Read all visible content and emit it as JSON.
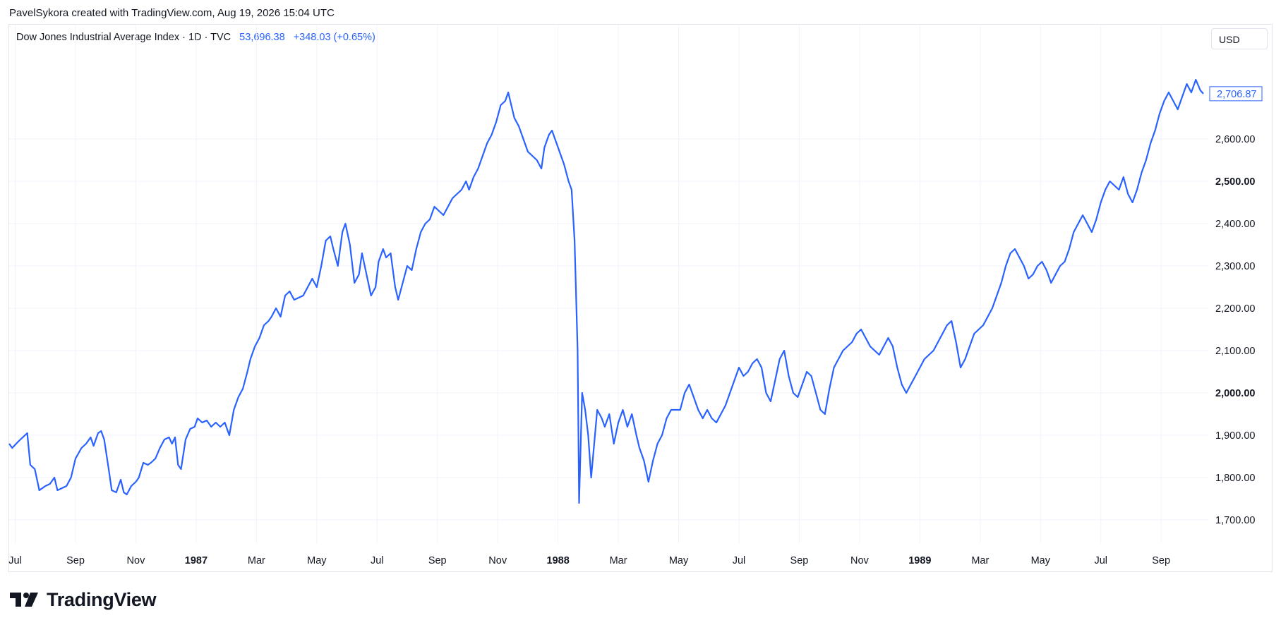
{
  "credit": "PavelSykora created with TradingView.com, Aug 19, 2026 15:04 UTC",
  "legend": {
    "symbol": "Dow Jones Industrial Average Index · 1D · TVC",
    "last": "53,696.38",
    "change": "+348.03 (+0.65%)"
  },
  "currency": "USD",
  "brand": "TradingView",
  "colors": {
    "line": "#2962ff",
    "grid": "#f0f3fa",
    "text": "#131722",
    "border": "#e0e3eb"
  },
  "chart_data": {
    "type": "line",
    "y_ticks": [
      {
        "value": 2600,
        "label": "2,600.00"
      },
      {
        "value": 2500,
        "label": "2,500.00",
        "bold": true
      },
      {
        "value": 2400,
        "label": "2,400.00"
      },
      {
        "value": 2300,
        "label": "2,300.00"
      },
      {
        "value": 2200,
        "label": "2,200.00"
      },
      {
        "value": 2100,
        "label": "2,100.00"
      },
      {
        "value": 2000,
        "label": "2,000.00",
        "bold": true
      },
      {
        "value": 1900,
        "label": "1,900.00"
      },
      {
        "value": 1800,
        "label": "1,800.00"
      },
      {
        "value": 1700,
        "label": "1,700.00"
      }
    ],
    "x_ticks": [
      {
        "t": 0.5,
        "label": "Jul"
      },
      {
        "t": 2.5,
        "label": "Sep"
      },
      {
        "t": 4.5,
        "label": "Nov"
      },
      {
        "t": 6.5,
        "label": "1987",
        "bold": true
      },
      {
        "t": 8.5,
        "label": "Mar"
      },
      {
        "t": 10.5,
        "label": "May"
      },
      {
        "t": 12.5,
        "label": "Jul"
      },
      {
        "t": 14.5,
        "label": "Sep"
      },
      {
        "t": 16.5,
        "label": "Nov"
      },
      {
        "t": 18.5,
        "label": "1988",
        "bold": true
      },
      {
        "t": 20.5,
        "label": "Mar"
      },
      {
        "t": 22.5,
        "label": "May"
      },
      {
        "t": 24.5,
        "label": "Jul"
      },
      {
        "t": 26.5,
        "label": "Sep"
      },
      {
        "t": 28.5,
        "label": "Nov"
      },
      {
        "t": 30.5,
        "label": "1989",
        "bold": true
      },
      {
        "t": 32.5,
        "label": "Mar"
      },
      {
        "t": 34.5,
        "label": "May"
      },
      {
        "t": 36.5,
        "label": "Jul"
      },
      {
        "t": 38.5,
        "label": "Sep"
      }
    ],
    "x_range": [
      0.3,
      38.5
    ],
    "ylim": [
      1650,
      2780
    ],
    "last_price": {
      "value": 2706.87,
      "label": "2,706.87"
    },
    "series": [
      {
        "points": [
          [
            0.3,
            1880
          ],
          [
            0.4,
            1870
          ],
          [
            0.6,
            1885
          ],
          [
            0.75,
            1895
          ],
          [
            0.9,
            1905
          ],
          [
            1.0,
            1830
          ],
          [
            1.15,
            1820
          ],
          [
            1.3,
            1770
          ],
          [
            1.5,
            1780
          ],
          [
            1.65,
            1785
          ],
          [
            1.8,
            1800
          ],
          [
            1.9,
            1770
          ],
          [
            2.05,
            1775
          ],
          [
            2.2,
            1780
          ],
          [
            2.35,
            1800
          ],
          [
            2.5,
            1845
          ],
          [
            2.7,
            1870
          ],
          [
            2.85,
            1880
          ],
          [
            3.0,
            1895
          ],
          [
            3.1,
            1875
          ],
          [
            3.25,
            1905
          ],
          [
            3.35,
            1910
          ],
          [
            3.45,
            1890
          ],
          [
            3.6,
            1820
          ],
          [
            3.7,
            1770
          ],
          [
            3.85,
            1765
          ],
          [
            4.0,
            1795
          ],
          [
            4.1,
            1765
          ],
          [
            4.2,
            1760
          ],
          [
            4.35,
            1780
          ],
          [
            4.5,
            1790
          ],
          [
            4.6,
            1800
          ],
          [
            4.75,
            1835
          ],
          [
            4.9,
            1830
          ],
          [
            5.0,
            1835
          ],
          [
            5.15,
            1845
          ],
          [
            5.3,
            1870
          ],
          [
            5.45,
            1890
          ],
          [
            5.6,
            1895
          ],
          [
            5.7,
            1880
          ],
          [
            5.8,
            1895
          ],
          [
            5.9,
            1830
          ],
          [
            6.0,
            1820
          ],
          [
            6.15,
            1890
          ],
          [
            6.3,
            1915
          ],
          [
            6.45,
            1920
          ],
          [
            6.55,
            1940
          ],
          [
            6.7,
            1930
          ],
          [
            6.85,
            1935
          ],
          [
            7.0,
            1920
          ],
          [
            7.15,
            1930
          ],
          [
            7.3,
            1920
          ],
          [
            7.45,
            1930
          ],
          [
            7.6,
            1900
          ],
          [
            7.75,
            1960
          ],
          [
            7.9,
            1990
          ],
          [
            8.05,
            2010
          ],
          [
            8.2,
            2050
          ],
          [
            8.3,
            2080
          ],
          [
            8.45,
            2110
          ],
          [
            8.6,
            2130
          ],
          [
            8.75,
            2160
          ],
          [
            8.9,
            2170
          ],
          [
            9.0,
            2180
          ],
          [
            9.15,
            2200
          ],
          [
            9.3,
            2180
          ],
          [
            9.45,
            2230
          ],
          [
            9.6,
            2240
          ],
          [
            9.75,
            2220
          ],
          [
            9.9,
            2225
          ],
          [
            10.05,
            2230
          ],
          [
            10.2,
            2250
          ],
          [
            10.35,
            2270
          ],
          [
            10.5,
            2250
          ],
          [
            10.65,
            2300
          ],
          [
            10.8,
            2360
          ],
          [
            10.95,
            2370
          ],
          [
            11.05,
            2340
          ],
          [
            11.2,
            2300
          ],
          [
            11.35,
            2380
          ],
          [
            11.45,
            2400
          ],
          [
            11.6,
            2350
          ],
          [
            11.75,
            2260
          ],
          [
            11.9,
            2280
          ],
          [
            12.0,
            2330
          ],
          [
            12.15,
            2280
          ],
          [
            12.3,
            2230
          ],
          [
            12.45,
            2250
          ],
          [
            12.55,
            2310
          ],
          [
            12.7,
            2340
          ],
          [
            12.8,
            2320
          ],
          [
            12.95,
            2330
          ],
          [
            13.1,
            2250
          ],
          [
            13.2,
            2220
          ],
          [
            13.35,
            2260
          ],
          [
            13.5,
            2300
          ],
          [
            13.65,
            2290
          ],
          [
            13.8,
            2340
          ],
          [
            13.95,
            2380
          ],
          [
            14.1,
            2400
          ],
          [
            14.25,
            2410
          ],
          [
            14.4,
            2440
          ],
          [
            14.55,
            2430
          ],
          [
            14.7,
            2420
          ],
          [
            14.85,
            2440
          ],
          [
            15.0,
            2460
          ],
          [
            15.15,
            2470
          ],
          [
            15.3,
            2480
          ],
          [
            15.45,
            2500
          ],
          [
            15.55,
            2480
          ],
          [
            15.7,
            2510
          ],
          [
            15.85,
            2530
          ],
          [
            16.0,
            2560
          ],
          [
            16.15,
            2590
          ],
          [
            16.3,
            2610
          ],
          [
            16.45,
            2640
          ],
          [
            16.6,
            2680
          ],
          [
            16.75,
            2690
          ],
          [
            16.85,
            2710
          ],
          [
            16.95,
            2680
          ],
          [
            17.05,
            2650
          ],
          [
            17.2,
            2630
          ],
          [
            17.35,
            2600
          ],
          [
            17.5,
            2570
          ],
          [
            17.65,
            2560
          ],
          [
            17.8,
            2550
          ],
          [
            17.95,
            2530
          ],
          [
            18.05,
            2580
          ],
          [
            18.2,
            2610
          ],
          [
            18.3,
            2620
          ],
          [
            18.45,
            2590
          ],
          [
            18.6,
            2560
          ],
          [
            18.7,
            2540
          ],
          [
            18.85,
            2500
          ],
          [
            18.95,
            2480
          ],
          [
            19.05,
            2360
          ],
          [
            19.15,
            2100
          ],
          [
            19.2,
            1740
          ],
          [
            19.3,
            2000
          ],
          [
            19.4,
            1960
          ],
          [
            19.5,
            1900
          ],
          [
            19.6,
            1800
          ],
          [
            19.7,
            1880
          ],
          [
            19.8,
            1960
          ],
          [
            19.95,
            1940
          ],
          [
            20.05,
            1920
          ],
          [
            20.2,
            1950
          ],
          [
            20.35,
            1880
          ],
          [
            20.5,
            1930
          ],
          [
            20.65,
            1960
          ],
          [
            20.8,
            1920
          ],
          [
            20.95,
            1950
          ],
          [
            21.1,
            1900
          ],
          [
            21.2,
            1870
          ],
          [
            21.35,
            1840
          ],
          [
            21.5,
            1790
          ],
          [
            21.65,
            1840
          ],
          [
            21.8,
            1880
          ],
          [
            21.95,
            1900
          ],
          [
            22.1,
            1940
          ],
          [
            22.25,
            1960
          ],
          [
            22.4,
            1960
          ],
          [
            22.55,
            1960
          ],
          [
            22.7,
            2000
          ],
          [
            22.85,
            2020
          ],
          [
            23.0,
            1990
          ],
          [
            23.15,
            1960
          ],
          [
            23.3,
            1940
          ],
          [
            23.45,
            1960
          ],
          [
            23.6,
            1940
          ],
          [
            23.75,
            1930
          ],
          [
            23.9,
            1950
          ],
          [
            24.05,
            1970
          ],
          [
            24.2,
            2000
          ],
          [
            24.35,
            2030
          ],
          [
            24.5,
            2060
          ],
          [
            24.65,
            2040
          ],
          [
            24.8,
            2050
          ],
          [
            24.95,
            2070
          ],
          [
            25.1,
            2080
          ],
          [
            25.25,
            2060
          ],
          [
            25.4,
            2000
          ],
          [
            25.55,
            1980
          ],
          [
            25.7,
            2030
          ],
          [
            25.85,
            2080
          ],
          [
            26.0,
            2100
          ],
          [
            26.15,
            2040
          ],
          [
            26.3,
            2000
          ],
          [
            26.45,
            1990
          ],
          [
            26.6,
            2020
          ],
          [
            26.75,
            2050
          ],
          [
            26.9,
            2040
          ],
          [
            27.05,
            2000
          ],
          [
            27.2,
            1960
          ],
          [
            27.35,
            1950
          ],
          [
            27.5,
            2010
          ],
          [
            27.65,
            2060
          ],
          [
            27.8,
            2080
          ],
          [
            27.95,
            2100
          ],
          [
            28.1,
            2110
          ],
          [
            28.25,
            2120
          ],
          [
            28.4,
            2140
          ],
          [
            28.55,
            2150
          ],
          [
            28.7,
            2130
          ],
          [
            28.85,
            2110
          ],
          [
            29.0,
            2100
          ],
          [
            29.15,
            2090
          ],
          [
            29.3,
            2110
          ],
          [
            29.45,
            2130
          ],
          [
            29.6,
            2110
          ],
          [
            29.75,
            2060
          ],
          [
            29.9,
            2020
          ],
          [
            30.05,
            2000
          ],
          [
            30.2,
            2020
          ],
          [
            30.35,
            2040
          ],
          [
            30.5,
            2060
          ],
          [
            30.65,
            2080
          ],
          [
            30.8,
            2090
          ],
          [
            30.95,
            2100
          ],
          [
            31.1,
            2120
          ],
          [
            31.25,
            2140
          ],
          [
            31.4,
            2160
          ],
          [
            31.55,
            2170
          ],
          [
            31.7,
            2120
          ],
          [
            31.85,
            2060
          ],
          [
            32.0,
            2080
          ],
          [
            32.15,
            2110
          ],
          [
            32.3,
            2140
          ],
          [
            32.45,
            2150
          ],
          [
            32.6,
            2160
          ],
          [
            32.75,
            2180
          ],
          [
            32.9,
            2200
          ],
          [
            33.05,
            2230
          ],
          [
            33.2,
            2260
          ],
          [
            33.35,
            2300
          ],
          [
            33.5,
            2330
          ],
          [
            33.65,
            2340
          ],
          [
            33.8,
            2320
          ],
          [
            33.95,
            2300
          ],
          [
            34.1,
            2270
          ],
          [
            34.25,
            2280
          ],
          [
            34.4,
            2300
          ],
          [
            34.55,
            2310
          ],
          [
            34.7,
            2290
          ],
          [
            34.85,
            2260
          ],
          [
            35.0,
            2280
          ],
          [
            35.15,
            2300
          ],
          [
            35.3,
            2310
          ],
          [
            35.45,
            2340
          ],
          [
            35.6,
            2380
          ],
          [
            35.75,
            2400
          ],
          [
            35.9,
            2420
          ],
          [
            36.05,
            2400
          ],
          [
            36.2,
            2380
          ],
          [
            36.35,
            2410
          ],
          [
            36.5,
            2450
          ],
          [
            36.65,
            2480
          ],
          [
            36.8,
            2500
          ],
          [
            36.95,
            2490
          ],
          [
            37.1,
            2480
          ],
          [
            37.25,
            2510
          ],
          [
            37.4,
            2470
          ],
          [
            37.55,
            2450
          ],
          [
            37.7,
            2480
          ],
          [
            37.85,
            2520
          ],
          [
            38.0,
            2550
          ],
          [
            38.15,
            2590
          ],
          [
            38.3,
            2620
          ],
          [
            38.45,
            2660
          ],
          [
            38.6,
            2690
          ],
          [
            38.75,
            2710
          ],
          [
            38.9,
            2690
          ],
          [
            39.05,
            2670
          ],
          [
            39.2,
            2700
          ],
          [
            39.35,
            2730
          ],
          [
            39.5,
            2710
          ],
          [
            39.65,
            2740
          ],
          [
            39.8,
            2715
          ],
          [
            39.9,
            2706.87
          ]
        ]
      }
    ]
  }
}
